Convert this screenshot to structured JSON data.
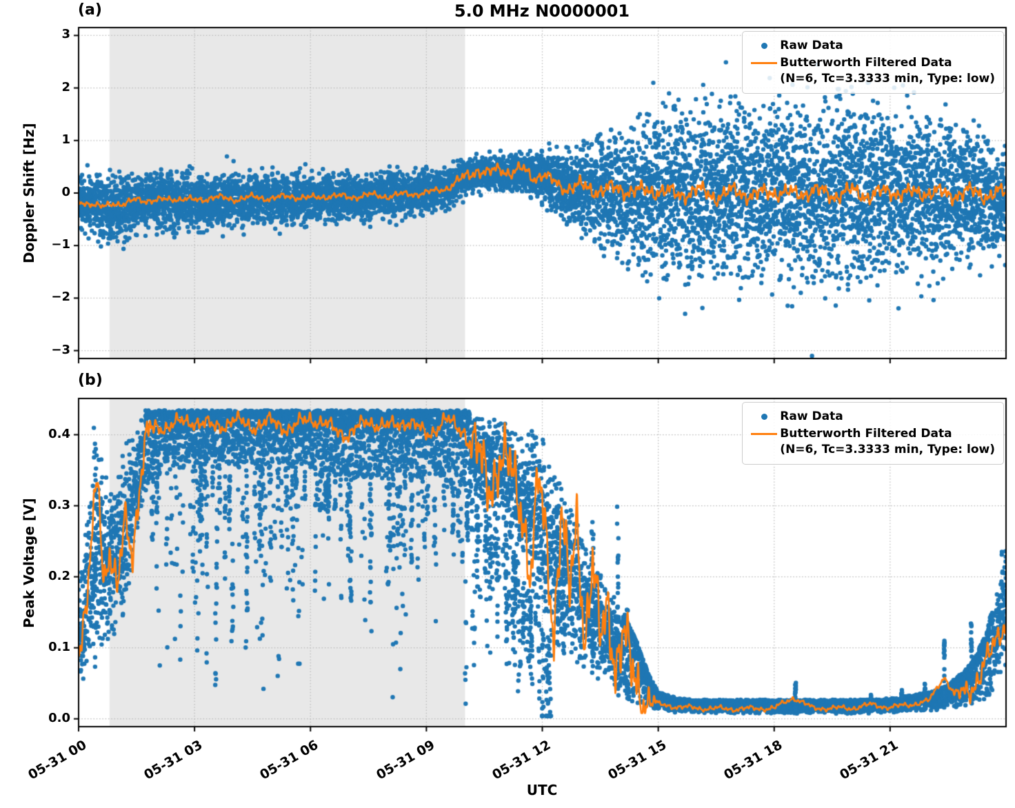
{
  "figure": {
    "title": "5.0 MHz N0000001",
    "xlabel": "UTC",
    "colors": {
      "raw": "#1f77b4",
      "filtered": "#ff7f0e",
      "night_shade": "#e8e8e8",
      "grid": "#b8b8b8",
      "spine": "#000000",
      "background": "#ffffff",
      "legend_border": "#cccccc"
    },
    "legend": {
      "raw_label": "Raw Data",
      "filtered_label": "Butterworth Filtered Data",
      "filtered_sublabel": "(N=6, Tc=3.3333 min, Type: low)",
      "position": "upper right"
    },
    "x_axis": {
      "range_hours": [
        0,
        24
      ],
      "tick_hours": [
        0,
        3,
        6,
        9,
        12,
        15,
        18,
        21
      ],
      "tick_labels": [
        "05-31 00",
        "05-31 03",
        "05-31 06",
        "05-31 09",
        "05-31 12",
        "05-31 15",
        "05-31 18",
        "05-31 21"
      ]
    },
    "night_shade": {
      "start_hour": 0.8,
      "end_hour": 10.0
    }
  },
  "chart_data": [
    {
      "id": "a",
      "panel_label": "(a)",
      "type": "scatter",
      "grid": true,
      "ylabel": "Doppler Shift [Hz]",
      "ylim": [
        -3.15,
        3.15
      ],
      "yticks": [
        -3,
        -2,
        -1,
        0,
        1,
        2,
        3
      ],
      "ytick_labels": [
        "−3",
        "−2",
        "−1",
        "0",
        "1",
        "2",
        "3"
      ],
      "series": [
        {
          "name": "Raw Data",
          "type": "scatter"
        },
        {
          "name": "Butterworth Filtered Data (N=6, Tc=3.3333 min, Type: low)",
          "type": "line"
        }
      ],
      "raw_envelope": {
        "t": [
          0,
          0.5,
          1,
          1.5,
          2,
          2.5,
          3,
          3.5,
          4,
          4.5,
          5,
          5.5,
          6,
          6.5,
          7,
          7.5,
          8,
          8.5,
          9,
          9.5,
          10,
          10.5,
          11,
          11.5,
          12,
          12.5,
          13,
          13.5,
          14,
          14.5,
          15,
          16,
          17,
          18,
          19,
          20,
          21,
          22,
          22.5,
          23,
          23.5,
          24
        ],
        "center": [
          -0.18,
          -0.25,
          -0.32,
          -0.2,
          -0.14,
          -0.18,
          -0.12,
          -0.16,
          -0.1,
          -0.13,
          -0.1,
          -0.12,
          -0.08,
          -0.1,
          -0.06,
          -0.1,
          -0.04,
          -0.02,
          0.0,
          0.08,
          0.3,
          0.42,
          0.38,
          0.4,
          0.3,
          0.15,
          0.08,
          0.02,
          0,
          0,
          0,
          0,
          0,
          0,
          0,
          0,
          0,
          0,
          0,
          -0.05,
          -0.1,
          -0.1
        ],
        "spread": [
          0.24,
          0.26,
          0.3,
          0.27,
          0.25,
          0.25,
          0.24,
          0.24,
          0.23,
          0.23,
          0.22,
          0.22,
          0.22,
          0.21,
          0.21,
          0.2,
          0.2,
          0.19,
          0.19,
          0.17,
          0.15,
          0.14,
          0.15,
          0.16,
          0.22,
          0.3,
          0.4,
          0.5,
          0.58,
          0.65,
          0.72,
          0.78,
          0.8,
          0.8,
          0.8,
          0.8,
          0.78,
          0.72,
          0.68,
          0.6,
          0.52,
          0.48
        ]
      },
      "filtered": {
        "t": [
          0,
          0.3,
          0.6,
          0.9,
          1.2,
          1.5,
          2,
          2.5,
          3,
          3.5,
          4,
          4.5,
          5,
          5.5,
          6,
          6.5,
          7,
          7.5,
          8,
          8.5,
          9,
          9.3,
          9.6,
          10,
          10.3,
          10.6,
          10.9,
          11.2,
          11.5,
          11.8,
          12,
          12.3,
          12.6,
          13,
          13.5,
          14,
          14.5,
          15,
          15.5,
          16,
          16.5,
          17,
          17.5,
          18,
          18.5,
          19,
          19.5,
          20,
          20.5,
          21,
          21.5,
          22,
          22.5,
          23,
          23.5,
          24
        ],
        "v": [
          -0.15,
          -0.2,
          -0.28,
          -0.18,
          -0.22,
          -0.12,
          -0.15,
          -0.1,
          -0.14,
          -0.08,
          -0.12,
          -0.08,
          -0.1,
          -0.06,
          -0.1,
          -0.05,
          -0.08,
          -0.04,
          -0.06,
          -0.02,
          0.0,
          0.05,
          0.12,
          0.3,
          0.45,
          0.35,
          0.48,
          0.38,
          0.45,
          0.3,
          0.35,
          0.2,
          0.1,
          0.12,
          0.05,
          0.08,
          0.02,
          0.06,
          -0.04,
          0.05,
          -0.06,
          0.03,
          -0.05,
          0.04,
          -0.03,
          0.05,
          -0.04,
          0.03,
          -0.05,
          0.04,
          -0.02,
          0.03,
          -0.04,
          0.02,
          -0.03,
          0.0
        ]
      },
      "filtered_wiggle": {
        "t": [
          0,
          9.5,
          10,
          12.5,
          13,
          24
        ],
        "amp": [
          0.07,
          0.07,
          0.13,
          0.13,
          0.17,
          0.17
        ]
      }
    },
    {
      "id": "b",
      "panel_label": "(b)",
      "type": "scatter",
      "grid": true,
      "ylabel": "Peak Voltage [V]",
      "ylim": [
        -0.011,
        0.451
      ],
      "yticks": [
        0.0,
        0.1,
        0.2,
        0.3,
        0.4
      ],
      "ytick_labels": [
        "0.0",
        "0.1",
        "0.2",
        "0.3",
        "0.4"
      ],
      "series": [
        {
          "name": "Raw Data",
          "type": "scatter"
        },
        {
          "name": "Butterworth Filtered Data (N=6, Tc=3.3333 min, Type: low)",
          "type": "line"
        }
      ],
      "raw_envelope": {
        "t": [
          0,
          0.25,
          0.5,
          0.75,
          1,
          1.25,
          1.5,
          1.75,
          2,
          3,
          4,
          5,
          6,
          7,
          8,
          9,
          9.5,
          10,
          10.5,
          11,
          11.25,
          11.5,
          11.75,
          12,
          12.25,
          12.5,
          12.75,
          13,
          13.25,
          13.5,
          13.75,
          14,
          14.25,
          14.5,
          14.75,
          15,
          15.5,
          16,
          17,
          18,
          19,
          20,
          21,
          21.5,
          22,
          22.5,
          23,
          23.25,
          23.5,
          23.75,
          24
        ],
        "hi": [
          0.2,
          0.3,
          0.42,
          0.33,
          0.35,
          0.4,
          0.43,
          0.432,
          0.432,
          0.432,
          0.432,
          0.432,
          0.432,
          0.432,
          0.432,
          0.432,
          0.432,
          0.432,
          0.43,
          0.43,
          0.425,
          0.42,
          0.42,
          0.41,
          0.37,
          0.34,
          0.31,
          0.28,
          0.25,
          0.22,
          0.19,
          0.16,
          0.13,
          0.1,
          0.06,
          0.035,
          0.026,
          0.024,
          0.024,
          0.024,
          0.024,
          0.024,
          0.026,
          0.03,
          0.035,
          0.045,
          0.07,
          0.09,
          0.12,
          0.18,
          0.3
        ],
        "lo": [
          0.04,
          0.05,
          0.07,
          0.09,
          0.11,
          0.16,
          0.24,
          0.32,
          0.35,
          0.36,
          0.36,
          0.36,
          0.35,
          0.34,
          0.34,
          0.34,
          0.33,
          0.32,
          0.29,
          0.26,
          0.24,
          0.2,
          0.16,
          0.13,
          0.11,
          0.09,
          0.075,
          0.06,
          0.05,
          0.045,
          0.04,
          0.032,
          0.027,
          0.022,
          0.017,
          0.013,
          0.011,
          0.01,
          0.01,
          0.01,
          0.01,
          0.01,
          0.011,
          0.012,
          0.013,
          0.015,
          0.018,
          0.022,
          0.028,
          0.04,
          0.07
        ]
      },
      "dip_zones": [
        {
          "from": 1.9,
          "to": 10.3,
          "count": 120,
          "max_depth": 0.3
        },
        {
          "from": 10.3,
          "to": 12.3,
          "count": 55,
          "max_depth": 0.17
        }
      ],
      "spike_columns": [
        {
          "t": 0.42,
          "top": 0.42
        },
        {
          "t": 12.4,
          "top": 0.3
        },
        {
          "t": 12.55,
          "top": 0.25
        },
        {
          "t": 13.3,
          "top": 0.29
        },
        {
          "t": 13.95,
          "top": 0.3
        },
        {
          "t": 14.2,
          "top": 0.16
        },
        {
          "t": 18.55,
          "top": 0.055
        },
        {
          "t": 20.5,
          "top": 0.035
        },
        {
          "t": 21.3,
          "top": 0.042
        },
        {
          "t": 21.9,
          "top": 0.05
        },
        {
          "t": 22.4,
          "top": 0.11
        },
        {
          "t": 23.1,
          "top": 0.14
        }
      ],
      "filtered": {
        "t": [
          0,
          0.2,
          0.35,
          0.5,
          0.65,
          0.8,
          1,
          1.2,
          1.4,
          1.6,
          1.8,
          2,
          2.5,
          3,
          3.5,
          4,
          4.5,
          5,
          5.5,
          6,
          6.5,
          7,
          7.5,
          8,
          8.5,
          9,
          9.5,
          10,
          10.3,
          10.6,
          10.9,
          11.2,
          11.5,
          11.7,
          11.9,
          12.1,
          12.3,
          12.5,
          12.7,
          12.9,
          13.1,
          13.3,
          13.5,
          13.7,
          13.9,
          14.1,
          14.3,
          14.6,
          15,
          15.5,
          16,
          17,
          18,
          18.5,
          19,
          20,
          20.5,
          21,
          21.5,
          22,
          22.4,
          22.7,
          23,
          23.3,
          23.6,
          23.8,
          24
        ],
        "v": [
          0.1,
          0.14,
          0.26,
          0.35,
          0.2,
          0.24,
          0.17,
          0.28,
          0.24,
          0.34,
          0.4,
          0.41,
          0.415,
          0.42,
          0.41,
          0.42,
          0.412,
          0.418,
          0.408,
          0.425,
          0.41,
          0.4,
          0.42,
          0.41,
          0.42,
          0.4,
          0.42,
          0.405,
          0.37,
          0.33,
          0.37,
          0.34,
          0.3,
          0.2,
          0.33,
          0.25,
          0.13,
          0.3,
          0.16,
          0.28,
          0.12,
          0.22,
          0.1,
          0.16,
          0.08,
          0.12,
          0.06,
          0.035,
          0.02,
          0.017,
          0.015,
          0.014,
          0.015,
          0.03,
          0.015,
          0.015,
          0.02,
          0.016,
          0.02,
          0.025,
          0.06,
          0.03,
          0.04,
          0.06,
          0.09,
          0.12,
          0.14
        ]
      },
      "filtered_wiggle": {
        "t": [
          0,
          1.8,
          2,
          10,
          10.3,
          14.5,
          15,
          22.5,
          23,
          24
        ],
        "amp": [
          0.03,
          0.03,
          0.012,
          0.012,
          0.05,
          0.05,
          0.004,
          0.004,
          0.02,
          0.02
        ]
      }
    }
  ]
}
